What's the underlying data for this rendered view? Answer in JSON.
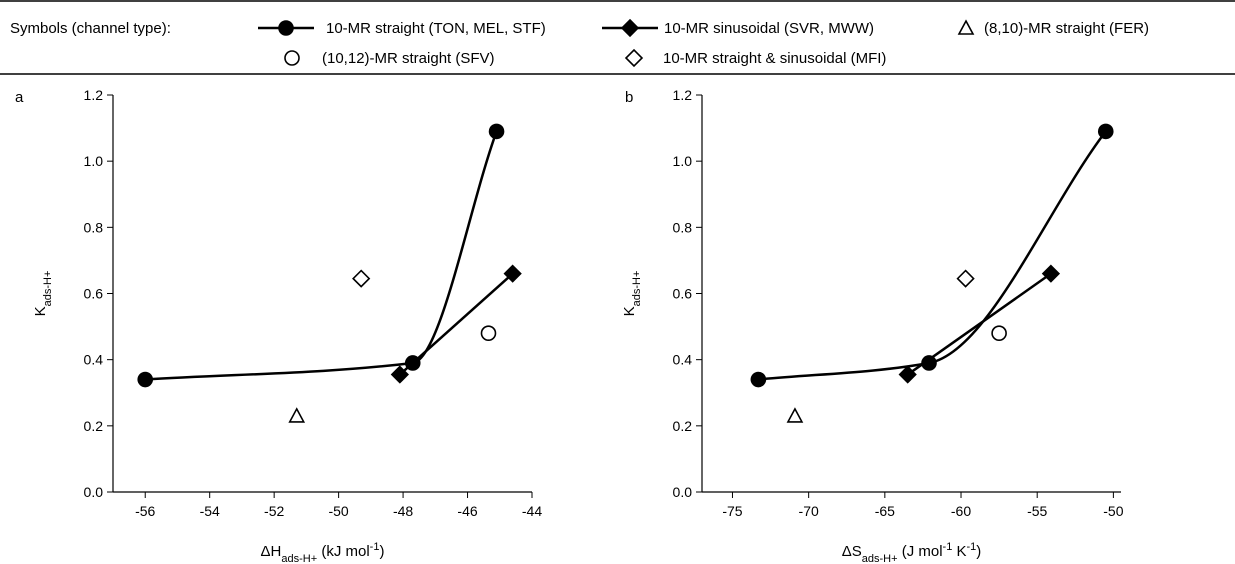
{
  "legend_title": "Symbols (channel type):",
  "chart_data": [
    {
      "type": "scatter",
      "panel_label": "a",
      "x_label": [
        "ΔH",
        "ads-H+",
        " (kJ mol",
        "-1",
        ")"
      ],
      "y_label": [
        "K",
        "ads-H+"
      ],
      "xlim": [
        -57,
        -44
      ],
      "ylim": [
        0,
        1.2
      ],
      "xticks": [
        -56,
        -54,
        -52,
        -50,
        -48,
        -46,
        -44
      ],
      "yticks": [
        {
          "value": 0,
          "label": "0.0"
        },
        0.2,
        0.4,
        0.6,
        0.8,
        {
          "value": 1,
          "label": "1.0"
        },
        1.2
      ],
      "series": [
        {
          "name": "10-MR straight (TON, MEL, STF)",
          "color": "#000000",
          "marker": "circle-filled",
          "line": "curve",
          "x": [
            -56.0,
            -47.7,
            -45.1
          ],
          "values": [
            0.34,
            0.39,
            1.09
          ]
        },
        {
          "name": "10-MR sinusoidal (SVR, MWW)",
          "color": "#000000",
          "marker": "diamond-filled",
          "line": "straight",
          "x": [
            -48.1,
            -44.6
          ],
          "values": [
            0.355,
            0.66
          ]
        },
        {
          "name": "(8,10)-MR straight (FER)",
          "color": "#000000",
          "marker": "triangle-open",
          "line": "none",
          "x": [
            -51.3
          ],
          "values": [
            0.23
          ]
        },
        {
          "name": "(10,12)-MR straight (SFV)",
          "color": "#000000",
          "marker": "circle-open",
          "line": "none",
          "x": [
            -45.35
          ],
          "values": [
            0.48
          ]
        },
        {
          "name": "10-MR straight & sinusoidal (MFI)",
          "color": "#000000",
          "marker": "diamond-open",
          "line": "none",
          "x": [
            -49.3
          ],
          "values": [
            0.645
          ]
        }
      ]
    },
    {
      "type": "scatter",
      "panel_label": "b",
      "x_label": [
        "ΔS",
        "ads-H+",
        " (J mol",
        "-1",
        " K",
        "-1",
        ")"
      ],
      "y_label": [
        "K",
        "ads-H+"
      ],
      "xlim": [
        -77,
        -49.5
      ],
      "ylim": [
        0,
        1.2
      ],
      "xticks": [
        -75,
        -70,
        -65,
        -60,
        -55,
        -50
      ],
      "yticks": [
        {
          "value": 0,
          "label": "0.0"
        },
        0.2,
        0.4,
        0.6,
        0.8,
        {
          "value": 1,
          "label": "1.0"
        },
        1.2
      ],
      "series": [
        {
          "color": "#000000",
          "marker": "circle-filled",
          "line": "curve",
          "x": [
            -73.3,
            -62.1,
            -50.5
          ],
          "values": [
            0.34,
            0.39,
            1.09
          ]
        },
        {
          "color": "#000000",
          "marker": "diamond-filled",
          "line": "straight",
          "x": [
            -63.5,
            -54.1
          ],
          "values": [
            0.355,
            0.66
          ]
        },
        {
          "color": "#000000",
          "marker": "triangle-open",
          "line": "none",
          "x": [
            -70.9
          ],
          "values": [
            0.23
          ]
        },
        {
          "color": "#000000",
          "marker": "circle-open",
          "line": "none",
          "x": [
            -57.5
          ],
          "values": [
            0.48
          ]
        },
        {
          "color": "#000000",
          "marker": "diamond-open",
          "line": "none",
          "x": [
            -59.7
          ],
          "values": [
            0.645
          ]
        }
      ]
    }
  ]
}
